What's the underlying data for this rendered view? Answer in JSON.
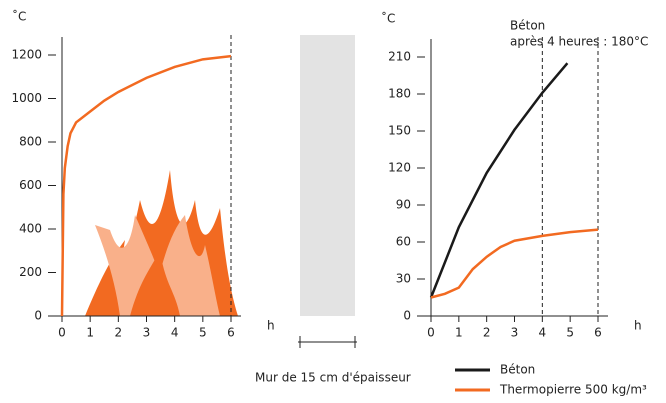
{
  "chart_data": [
    {
      "type": "line",
      "y_label": "˚C",
      "x_label": "h",
      "ylim": [
        0,
        1200
      ],
      "yticks": [
        0,
        200,
        400,
        600,
        800,
        1000,
        1200
      ],
      "xlim": [
        0,
        6
      ],
      "xticks": [
        0,
        1,
        2,
        3,
        4,
        5,
        6
      ],
      "vlines": [
        6
      ],
      "series": [
        {
          "color": "#f26a21",
          "x": [
            0,
            0.05,
            0.1,
            0.2,
            0.3,
            0.5,
            1,
            1.5,
            2,
            3,
            4,
            5,
            6
          ],
          "values": [
            0,
            560,
            680,
            780,
            840,
            890,
            940,
            990,
            1030,
            1095,
            1145,
            1180,
            1195
          ]
        }
      ]
    },
    {
      "type": "line",
      "y_label": "˚C",
      "x_label": "h",
      "ylim": [
        0,
        210
      ],
      "yticks": [
        0,
        30,
        60,
        90,
        120,
        150,
        180,
        210
      ],
      "xlim": [
        0,
        6
      ],
      "xticks": [
        0,
        1,
        2,
        3,
        4,
        5,
        6
      ],
      "vlines": [
        4,
        6
      ],
      "annotation": [
        "Béton",
        "après 4 heures : 180°C"
      ],
      "series": [
        {
          "name": "Béton",
          "color": "#1a1a1a",
          "x": [
            0,
            1,
            2,
            3,
            4,
            4.9
          ],
          "values": [
            15,
            72,
            116,
            151,
            181,
            205
          ]
        },
        {
          "name": "Thermopierre 500 kg/m³",
          "color": "#f26a21",
          "x": [
            0,
            0.5,
            1,
            1.5,
            2,
            2.5,
            3,
            4,
            5,
            6
          ],
          "values": [
            15,
            18,
            23,
            38,
            48,
            56,
            61,
            65,
            68,
            70
          ]
        }
      ]
    }
  ],
  "wall": {
    "caption": "Mur de 15 cm d'épaisseur"
  }
}
